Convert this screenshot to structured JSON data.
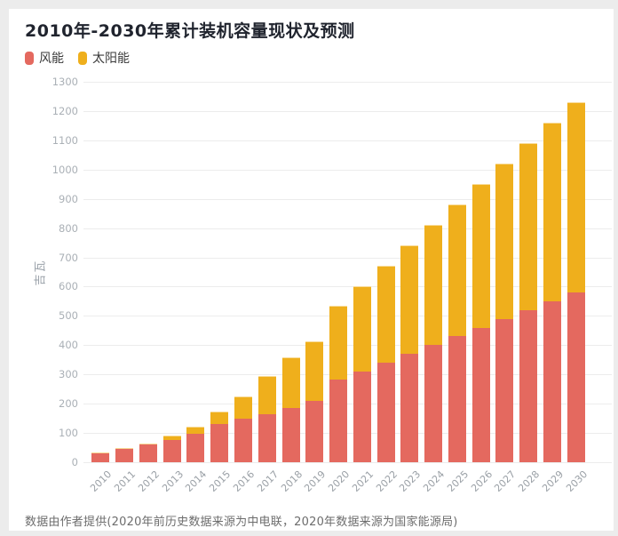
{
  "title": "2010年-2030年累计装机容量现状及预测",
  "legend": [
    {
      "label": "风能",
      "color": "#e4695f"
    },
    {
      "label": "太阳能",
      "color": "#efaf1c"
    }
  ],
  "footer": "数据由作者提供(2020年前历史数据来源为中电联，2020年数据来源为国家能源局)",
  "colors": {
    "wind": "#e4695f",
    "solar": "#efaf1c",
    "grid": "#ececec",
    "tick_text": "#aab0b6",
    "axis_text": "#9aa0a6",
    "background": "#ffffff"
  },
  "chart_data": {
    "type": "bar",
    "stacked": true,
    "title": "2010年-2030年累计装机容量现状及预测",
    "ylabel": "吉瓦",
    "xlabel": "",
    "categories": [
      "2010",
      "2011",
      "2012",
      "2013",
      "2014",
      "2015",
      "2016",
      "2017",
      "2018",
      "2019",
      "2020",
      "2021",
      "2022",
      "2023",
      "2024",
      "2025",
      "2026",
      "2027",
      "2028",
      "2029",
      "2030"
    ],
    "series": [
      {
        "name": "风能",
        "color": "#e4695f",
        "values": [
          31,
          46,
          61,
          76,
          96,
          131,
          149,
          164,
          184,
          210,
          281,
          310,
          340,
          370,
          400,
          430,
          460,
          490,
          520,
          550,
          580
        ]
      },
      {
        "name": "太阳能",
        "color": "#efaf1c",
        "values": [
          1,
          2,
          3,
          16,
          25,
          43,
          77,
          130,
          175,
          204,
          253,
          290,
          330,
          370,
          410,
          450,
          490,
          530,
          570,
          610,
          650
        ]
      }
    ],
    "totals": [
      32,
      48,
      64,
      92,
      121,
      174,
      226,
      294,
      359,
      414,
      534,
      600,
      670,
      740,
      810,
      880,
      950,
      1020,
      1090,
      1160,
      1230
    ],
    "ylim": [
      0,
      1300
    ],
    "ytick_step": 100,
    "grid": true,
    "legend_position": "top-left",
    "note": "数据由作者提供(2020年前历史数据来源为中电联，2020年数据来源为国家能源局)"
  }
}
